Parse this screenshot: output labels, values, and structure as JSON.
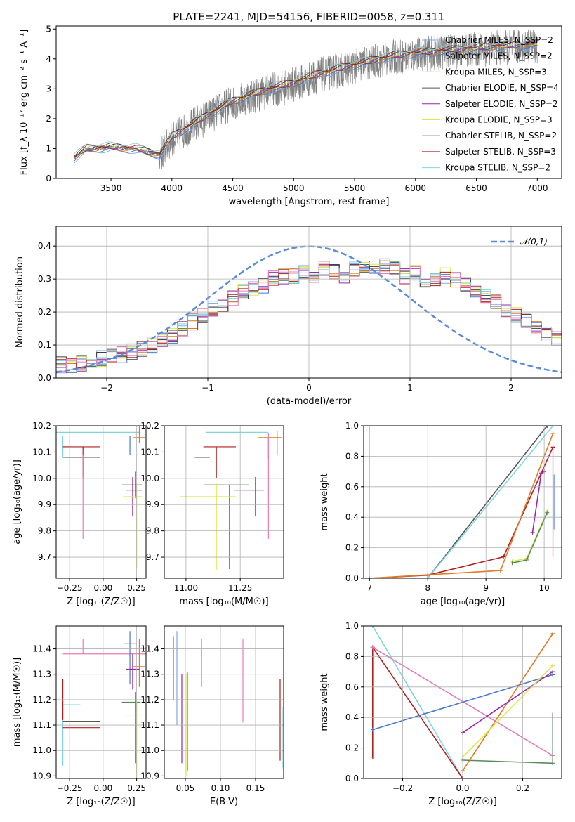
{
  "figure": {
    "title": "PLATE=2241, MJD=54156, FIBERID=0058, z=0.311"
  },
  "colors": {
    "axis": "#000000",
    "grid": "#b0b0b0",
    "spectrum": "#808080",
    "normal_curve": "#5b8bd6",
    "miles_chabrier": "#7fa8e8",
    "miles_salpeter": "#4a78cc",
    "miles_kroupa": "#e07a22",
    "elodie_chabrier": "#555555",
    "elodie_salpeter": "#9b27b0",
    "elodie_kroupa": "#d8ea4a",
    "stelib_chabrier": "#3d3d3d",
    "stelib_salpeter": "#b01e1e",
    "stelib_kroupa": "#7fd6dc",
    "pink": "#e87bb5",
    "green": "#5a8a5a"
  },
  "chart_data": [
    {
      "id": "spectrum",
      "type": "line",
      "xlabel": "wavelength [Angstrom, rest frame]",
      "ylabel": "Flux [f_λ 10⁻¹⁷ erg cm⁻² s⁻¹ A⁻¹]",
      "xlim": [
        3050,
        7200
      ],
      "ylim": [
        0,
        5.1
      ],
      "xticks": [
        3500,
        4000,
        4500,
        5000,
        5500,
        6000,
        6500,
        7000
      ],
      "yticks": [
        0,
        1,
        2,
        3,
        4,
        5
      ],
      "grid": false,
      "legend_position": "right",
      "legend": [
        "Chabrier MILES, N_SSP=2",
        "Salpeter MILES, N_SSP=2",
        "Kroupa MILES, N_SSP=3",
        "Chabrier ELODIE, N_SSP=4",
        "Salpeter ELODIE, N_SSP=2",
        "Kroupa ELODIE, N_SSP=3",
        "Chabrier STELIB, N_SSP=2",
        "Salpeter STELIB, N_SSP=3",
        "Kroupa STELIB, N_SSP=2"
      ],
      "continuum_x": [
        3200,
        3300,
        3500,
        3700,
        3900,
        4000,
        4200,
        4500,
        4800,
        5000,
        5200,
        5500,
        5800,
        6000,
        6300,
        6600,
        7000
      ],
      "continuum_y": [
        0.7,
        1.0,
        1.05,
        1.0,
        0.8,
        1.4,
        1.9,
        2.6,
        3.0,
        3.2,
        3.5,
        3.8,
        4.1,
        4.2,
        4.3,
        4.4,
        4.5
      ]
    },
    {
      "id": "residual_hist",
      "type": "line",
      "xlabel": "(data-model)/error",
      "ylabel": "Normed distribution",
      "xlim": [
        -2.5,
        2.5
      ],
      "ylim": [
        0,
        0.46
      ],
      "xticks": [
        -2,
        -1,
        0,
        1,
        2
      ],
      "yticks": [
        0.0,
        0.1,
        0.2,
        0.3,
        0.4
      ],
      "grid": true,
      "legend_position": "top-right",
      "legend": [
        "𝒩(0,1)"
      ],
      "bins_from": -2.5,
      "bin_width": 0.1,
      "base_hist": [
        0.04,
        0.04,
        0.045,
        0.05,
        0.06,
        0.065,
        0.07,
        0.08,
        0.09,
        0.1,
        0.115,
        0.13,
        0.15,
        0.17,
        0.19,
        0.21,
        0.22,
        0.24,
        0.26,
        0.27,
        0.28,
        0.3,
        0.31,
        0.31,
        0.32,
        0.3,
        0.33,
        0.32,
        0.31,
        0.33,
        0.34,
        0.33,
        0.34,
        0.33,
        0.31,
        0.32,
        0.3,
        0.3,
        0.31,
        0.3,
        0.28,
        0.27,
        0.25,
        0.23,
        0.21,
        0.19,
        0.17,
        0.15,
        0.13,
        0.12
      ]
    },
    {
      "id": "age_vs_Z",
      "type": "scatter",
      "xlabel": "Z [log₁₀(Z/Z☉)]",
      "ylabel": "age  [log₁₀(age/yr)]",
      "xlim": [
        -0.35,
        0.32
      ],
      "ylim": [
        9.62,
        10.2
      ],
      "xticks": [
        -0.25,
        0.0,
        0.25
      ],
      "xticklabels": [
        "−0.25",
        "0.00",
        "0.25"
      ],
      "yticks": [
        9.7,
        9.8,
        9.9,
        10.0,
        10.1,
        10.2
      ],
      "grid": true,
      "points": [
        {
          "x": -0.2,
          "y": 10.175,
          "xerr": [
            0.15,
            0.48
          ],
          "yerr": [
            0,
            0
          ],
          "c": "stelib_kroupa"
        },
        {
          "x": -0.3,
          "y": 10.12,
          "xerr": [
            0,
            0.07
          ],
          "yerr": [
            0.04,
            0.04
          ],
          "c": "stelib_kroupa"
        },
        {
          "x": -0.15,
          "y": 10.12,
          "xerr": [
            0.15,
            0.13
          ],
          "yerr": [
            0.12,
            0
          ],
          "c": "stelib_salpeter"
        },
        {
          "x": -0.15,
          "y": 10.08,
          "xerr": [
            0.15,
            0.13
          ],
          "yerr": [
            0,
            0
          ],
          "c": "elodie_chabrier"
        },
        {
          "x": -0.15,
          "y": 10.0,
          "xerr": [
            0,
            0
          ],
          "yerr": [
            0.23,
            0.09
          ],
          "c": "pink"
        },
        {
          "x": 0.27,
          "y": 10.155,
          "xerr": [
            0.05,
            0.04
          ],
          "yerr": [
            0.02,
            0.08
          ],
          "c": "miles_kroupa"
        },
        {
          "x": 0.24,
          "y": 9.975,
          "xerr": [
            0.1,
            0.05
          ],
          "yerr": [
            0.05,
            0.05
          ],
          "c": "green"
        },
        {
          "x": 0.22,
          "y": 9.955,
          "xerr": [
            0.05,
            0.07
          ],
          "yerr": [
            0.1,
            0.05
          ],
          "c": "elodie_salpeter"
        },
        {
          "x": 0.25,
          "y": 9.93,
          "xerr": [
            0.1,
            0.04
          ],
          "yerr": [
            0.27,
            0.05
          ],
          "c": "elodie_kroupa"
        },
        {
          "x": 0.2,
          "y": 10.12,
          "xerr": [
            0,
            0
          ],
          "yerr": [
            0.03,
            0.04
          ],
          "c": "miles_salpeter"
        }
      ]
    },
    {
      "id": "age_vs_mass",
      "type": "scatter",
      "xlabel": "mass [log₁₀(M/M☉)]",
      "ylabel": "",
      "xlim": [
        10.9,
        11.45
      ],
      "ylim": [
        9.62,
        10.2
      ],
      "xticks": [
        11.0,
        11.25
      ],
      "xticklabels": [
        "11.00",
        "11.25"
      ],
      "yticks": [
        9.7,
        9.8,
        9.9,
        10.0,
        10.1,
        10.2
      ],
      "grid": true,
      "points": [
        {
          "x": 11.19,
          "y": 10.175,
          "xerr": [
            0.1,
            0.19
          ],
          "yerr": [
            0,
            0
          ],
          "c": "stelib_kroupa"
        },
        {
          "x": 11.14,
          "y": 10.12,
          "xerr": [
            0.06,
            0.09
          ],
          "yerr": [
            0.12,
            0
          ],
          "c": "stelib_salpeter"
        },
        {
          "x": 11.11,
          "y": 10.08,
          "xerr": [
            0.07,
            0.0
          ],
          "yerr": [
            0,
            0
          ],
          "c": "elodie_chabrier"
        },
        {
          "x": 11.38,
          "y": 10.155,
          "xerr": [
            0.05,
            0.06
          ],
          "yerr": [
            0.08,
            0.0
          ],
          "c": "miles_kroupa"
        },
        {
          "x": 11.2,
          "y": 9.975,
          "xerr": [
            0.12,
            0.09
          ],
          "yerr": [
            0.32,
            0.0
          ],
          "c": "green"
        },
        {
          "x": 11.32,
          "y": 9.955,
          "xerr": [
            0.1,
            0.04
          ],
          "yerr": [
            0.1,
            0.05
          ],
          "c": "elodie_salpeter"
        },
        {
          "x": 11.14,
          "y": 9.93,
          "xerr": [
            0.17,
            0.09
          ],
          "yerr": [
            0.28,
            0.05
          ],
          "c": "elodie_kroupa"
        },
        {
          "x": 11.38,
          "y": 10.12,
          "xerr": [
            0,
            0
          ],
          "yerr": [
            0.35,
            0.05
          ],
          "c": "pink"
        },
        {
          "x": 11.42,
          "y": 10.13,
          "xerr": [
            0,
            0
          ],
          "yerr": [
            0.04,
            0.05
          ],
          "c": "miles_salpeter"
        }
      ]
    },
    {
      "id": "cumulative_age",
      "type": "line",
      "xlabel": "age  [log₁₀(age/yr)]",
      "ylabel": "mass weight",
      "xlim": [
        6.9,
        10.3
      ],
      "ylim": [
        0,
        1.0
      ],
      "xticks": [
        7,
        8,
        9,
        10
      ],
      "yticks": [
        0.0,
        0.2,
        0.4,
        0.6,
        0.8,
        1.0
      ],
      "grid": true,
      "series": [
        {
          "c": "elodie_chabrier",
          "x": [
            8.0,
            10.05
          ],
          "y": [
            0.0,
            1.0
          ]
        },
        {
          "c": "stelib_kroupa",
          "x": [
            8.0,
            10.15
          ],
          "y": [
            0.0,
            1.0
          ]
        },
        {
          "c": "stelib_salpeter",
          "x": [
            7.0,
            8.0,
            9.3,
            10.15
          ],
          "y": [
            0.0,
            0.02,
            0.14,
            0.86
          ]
        },
        {
          "c": "miles_kroupa",
          "x": [
            7.0,
            9.25,
            10.15
          ],
          "y": [
            0.0,
            0.05,
            0.95
          ]
        },
        {
          "c": "elodie_salpeter",
          "x": [
            9.8,
            9.95,
            10.0
          ],
          "y": [
            0.3,
            0.69,
            0.7
          ]
        },
        {
          "c": "elodie_kroupa",
          "x": [
            9.45,
            9.7,
            10.05
          ],
          "y": [
            0.11,
            0.13,
            0.44
          ]
        },
        {
          "c": "green",
          "x": [
            9.45,
            9.7,
            10.05
          ],
          "y": [
            0.1,
            0.12,
            0.43
          ]
        }
      ],
      "bars": [
        {
          "x": 10.15,
          "y": [
            0.14,
            0.86
          ],
          "c": "pink"
        },
        {
          "x": 10.17,
          "y": [
            0.32,
            0.68
          ],
          "c": "miles_chabrier"
        }
      ]
    },
    {
      "id": "mass_vs_Z",
      "type": "scatter",
      "xlabel": "Z [log₁₀(Z/Z☉)]",
      "ylabel": "mass [log₁₀(M/M☉)]",
      "xlim": [
        -0.35,
        0.32
      ],
      "ylim": [
        10.89,
        11.49
      ],
      "xticks": [
        -0.25,
        0.0,
        0.25
      ],
      "xticklabels": [
        "−0.25",
        "0.00",
        "0.25"
      ],
      "yticks": [
        10.9,
        11.0,
        11.1,
        11.2,
        11.3,
        11.4
      ],
      "grid": true,
      "points": [
        {
          "x": -0.15,
          "y": 11.38,
          "xerr": [
            0.15,
            0.48
          ],
          "yerr": [
            0.0,
            0.06
          ],
          "c": "pink"
        },
        {
          "x": -0.3,
          "y": 11.18,
          "xerr": [
            0,
            0.13
          ],
          "yerr": [
            0.24,
            0.0
          ],
          "c": "stelib_kroupa"
        },
        {
          "x": -0.15,
          "y": 11.115,
          "xerr": [
            0.15,
            0.13
          ],
          "yerr": [
            0,
            0
          ],
          "c": "elodie_chabrier"
        },
        {
          "x": -0.15,
          "y": 11.09,
          "xerr": [
            0.15,
            0.13
          ],
          "yerr": [
            0,
            0
          ],
          "c": "stelib_salpeter"
        },
        {
          "x": -0.3,
          "y": 11.2,
          "xerr": [
            0,
            0
          ],
          "yerr": [
            0.08,
            0.08
          ],
          "c": "stelib_salpeter"
        },
        {
          "x": 0.2,
          "y": 11.42,
          "xerr": [
            0.05,
            0.05
          ],
          "yerr": [
            0.16,
            0.05
          ],
          "c": "miles_salpeter"
        },
        {
          "x": 0.27,
          "y": 11.33,
          "xerr": [
            0.05,
            0.04
          ],
          "yerr": [
            0.08,
            0.11
          ],
          "c": "miles_kroupa"
        },
        {
          "x": 0.22,
          "y": 11.32,
          "xerr": [
            0.05,
            0.05
          ],
          "yerr": [
            0.08,
            0.06
          ],
          "c": "elodie_salpeter"
        },
        {
          "x": 0.24,
          "y": 11.19,
          "xerr": [
            0.1,
            0.04
          ],
          "yerr": [
            0.24,
            0.04
          ],
          "c": "green"
        },
        {
          "x": 0.25,
          "y": 11.14,
          "xerr": [
            0.1,
            0.04
          ],
          "yerr": [
            0.25,
            0.05
          ],
          "c": "elodie_kroupa"
        }
      ]
    },
    {
      "id": "mass_vs_ebv",
      "type": "scatter",
      "xlabel": "E(B-V)",
      "ylabel": "",
      "xlim": [
        0.02,
        0.19
      ],
      "ylim": [
        10.89,
        11.49
      ],
      "xticks": [
        0.05,
        0.1,
        0.15
      ],
      "xticklabels": [
        "0.05",
        "0.10",
        "0.15"
      ],
      "yticks": [
        10.9,
        11.0,
        11.1,
        11.2,
        11.3,
        11.4
      ],
      "grid": true,
      "points": [
        {
          "x": 0.033,
          "y": 11.3,
          "xerr": [
            0,
            0
          ],
          "yerr": [
            0.1,
            0.15
          ],
          "c": "miles_salpeter"
        },
        {
          "x": 0.038,
          "y": 11.3,
          "xerr": [
            0,
            0
          ],
          "yerr": [
            0.2,
            0.17
          ],
          "c": "miles_chabrier"
        },
        {
          "x": 0.045,
          "y": 11.2,
          "xerr": [
            0,
            0
          ],
          "yerr": [
            0.25,
            0.1
          ],
          "c": "elodie_salpeter"
        },
        {
          "x": 0.052,
          "y": 11.1,
          "xerr": [
            0,
            0
          ],
          "yerr": [
            0.2,
            0.2
          ],
          "c": "elodie_kroupa"
        },
        {
          "x": 0.053,
          "y": 11.15,
          "xerr": [
            0,
            0
          ],
          "yerr": [
            0.23,
            0.16
          ],
          "c": "green"
        },
        {
          "x": 0.073,
          "y": 11.35,
          "xerr": [
            0,
            0
          ],
          "yerr": [
            0.1,
            0.09
          ],
          "c": "miles_kroupa"
        },
        {
          "x": 0.132,
          "y": 11.28,
          "xerr": [
            0,
            0
          ],
          "yerr": [
            0.17,
            0.16
          ],
          "c": "pink"
        },
        {
          "x": 0.185,
          "y": 11.1,
          "xerr": [
            0,
            0
          ],
          "yerr": [
            0.14,
            0.18
          ],
          "c": "stelib_salpeter"
        },
        {
          "x": 0.188,
          "y": 11.05,
          "xerr": [
            0,
            0
          ],
          "yerr": [
            0.12,
            0.12
          ],
          "c": "stelib_kroupa"
        }
      ]
    },
    {
      "id": "cumulative_Z",
      "type": "line",
      "xlabel": "Z [log₁₀(Z/Z☉)]",
      "ylabel": "mass weight",
      "xlim": [
        -0.33,
        0.33
      ],
      "ylim": [
        0,
        1.0
      ],
      "xticks": [
        -0.2,
        0.0,
        0.2
      ],
      "xticklabels": [
        "−0.2",
        "0.0",
        "0.2"
      ],
      "yticks": [
        0.0,
        0.2,
        0.4,
        0.6,
        0.8,
        1.0
      ],
      "grid": true,
      "series": [
        {
          "c": "stelib_kroupa",
          "x": [
            -0.3,
            0.0
          ],
          "y": [
            1.0,
            0.0
          ]
        },
        {
          "c": "stelib_salpeter",
          "x": [
            -0.3,
            -0.3,
            0.0
          ],
          "y": [
            0.14,
            0.86,
            0.0
          ]
        },
        {
          "c": "pink",
          "x": [
            -0.3,
            0.3
          ],
          "y": [
            0.86,
            0.15
          ]
        },
        {
          "c": "miles_salpeter",
          "x": [
            -0.3,
            0.3
          ],
          "y": [
            0.32,
            0.68
          ]
        },
        {
          "c": "miles_kroupa",
          "x": [
            0.0,
            0.3
          ],
          "y": [
            0.05,
            0.95
          ]
        },
        {
          "c": "elodie_salpeter",
          "x": [
            0.0,
            0.3
          ],
          "y": [
            0.3,
            0.7
          ]
        },
        {
          "c": "elodie_kroupa",
          "x": [
            0.0,
            0.3
          ],
          "y": [
            0.14,
            0.74
          ]
        },
        {
          "c": "green",
          "x": [
            0.0,
            0.3
          ],
          "y": [
            0.12,
            0.1
          ]
        }
      ],
      "bars": [
        {
          "x": 0.3,
          "y": [
            0.1,
            0.43
          ],
          "c": "green"
        }
      ]
    }
  ]
}
